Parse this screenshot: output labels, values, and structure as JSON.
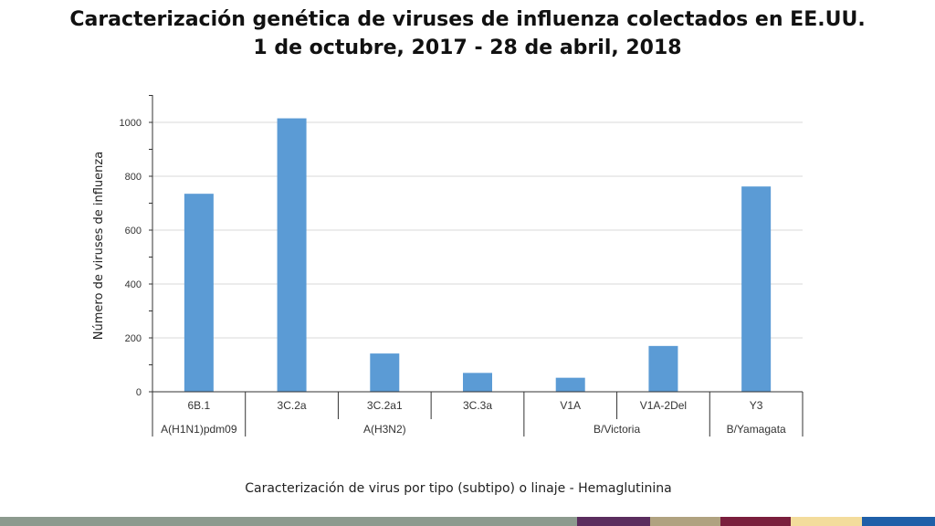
{
  "chart_data": {
    "type": "bar",
    "title": "Caracterización genética de viruses de influenza colectados en EE.UU.",
    "title_line2": "1 de octubre, 2017 - 28 de abril, 2018",
    "xlabel": "Caracterización de virus por tipo (subtipo) o linaje - Hemaglutinina",
    "ylabel": "Número de viruses de influenza",
    "categories": [
      "6B.1",
      "3C.2a",
      "3C.2a1",
      "3C.3a",
      "V1A",
      "V1A-2Del",
      "Y3"
    ],
    "values": [
      735,
      1015,
      142,
      70,
      52,
      170,
      762
    ],
    "groups": [
      {
        "name": "A(H1N1)pdm09",
        "span": 1
      },
      {
        "name": "A(H3N2)",
        "span": 3
      },
      {
        "name": "B/Victoria",
        "span": 2
      },
      {
        "name": "B/Yamagata",
        "span": 1
      }
    ],
    "yticks": [
      0,
      200,
      400,
      600,
      800,
      1000
    ],
    "ylim": [
      0,
      1100
    ],
    "bar_color": "#5b9bd5",
    "grid": true
  },
  "footer_colors": [
    "#8c9a8e",
    "#5b2d5e",
    "#b0a280",
    "#7a1f3d",
    "#f3dc9c",
    "#1f5fa8"
  ]
}
